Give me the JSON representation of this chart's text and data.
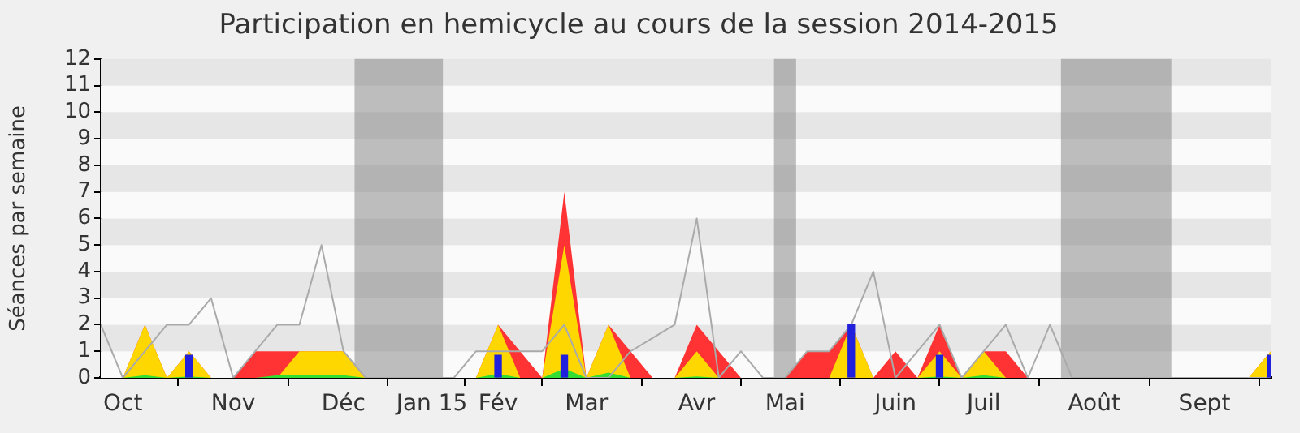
{
  "chart_data": {
    "type": "area",
    "title": "Participation en hemicycle au cours de la session 2014-2015",
    "ylabel": "Séances par semaine",
    "x": [
      "2014-09-29",
      "2014-10-06",
      "2014-10-13",
      "2014-10-20",
      "2014-10-27",
      "2014-11-03",
      "2014-11-10",
      "2014-11-17",
      "2014-11-24",
      "2014-12-01",
      "2014-12-08",
      "2014-12-15",
      "2014-12-22",
      "2014-12-29",
      "2015-01-05",
      "2015-01-12",
      "2015-01-19",
      "2015-01-26",
      "2015-02-02",
      "2015-02-09",
      "2015-02-16",
      "2015-02-23",
      "2015-03-02",
      "2015-03-09",
      "2015-03-16",
      "2015-03-23",
      "2015-03-30",
      "2015-04-06",
      "2015-04-13",
      "2015-04-20",
      "2015-04-27",
      "2015-05-04",
      "2015-05-11",
      "2015-05-18",
      "2015-05-25",
      "2015-06-01",
      "2015-06-08",
      "2015-06-15",
      "2015-06-22",
      "2015-06-29",
      "2015-07-06",
      "2015-07-13",
      "2015-07-20",
      "2015-07-27",
      "2015-08-03",
      "2015-08-10",
      "2015-08-17",
      "2015-08-24",
      "2015-08-31",
      "2015-09-07",
      "2015-09-14",
      "2015-09-21",
      "2015-09-28",
      "2015-10-05"
    ],
    "series": [
      {
        "color": "#ff3333",
        "values": [
          0,
          0,
          2,
          0,
          1,
          0,
          0,
          1,
          1,
          1,
          1,
          1,
          0,
          0,
          0,
          0,
          0,
          0,
          2,
          1,
          0,
          7,
          0,
          2,
          1,
          0,
          0,
          2,
          1,
          0,
          0,
          0,
          1,
          1,
          2,
          0,
          1,
          0,
          2,
          0,
          1,
          1,
          0,
          0,
          0,
          0,
          0,
          0,
          0,
          0,
          0,
          0,
          0,
          1
        ]
      },
      {
        "color": "#ffd700",
        "values": [
          0,
          0,
          2,
          0,
          1,
          0,
          0,
          0,
          0,
          1,
          1,
          1,
          0,
          0,
          0,
          0,
          0,
          0,
          2,
          0,
          0,
          5,
          0,
          2,
          0,
          0,
          0,
          1,
          0,
          0,
          0,
          0,
          0,
          0,
          2,
          0,
          0,
          0,
          1,
          0,
          1,
          0,
          0,
          0,
          0,
          0,
          0,
          0,
          0,
          0,
          0,
          0,
          0,
          1
        ]
      },
      {
        "color": "#33dd33",
        "values": [
          0,
          0,
          0.1,
          0,
          0.05,
          0,
          0,
          0,
          0.1,
          0.1,
          0.1,
          0.1,
          0,
          0,
          0,
          0,
          0,
          0,
          0.15,
          0,
          0,
          0.35,
          0,
          0.2,
          0,
          0,
          0,
          0.05,
          0,
          0,
          0,
          0,
          0,
          0,
          null,
          0,
          0,
          0,
          0.05,
          0,
          0.1,
          0,
          0,
          0,
          0,
          0,
          0,
          0,
          0,
          0,
          0,
          0,
          0,
          0
        ]
      },
      {
        "type": "line",
        "color": "#aaaaaa",
        "values": [
          2,
          0,
          1,
          2,
          2,
          3,
          0,
          1,
          2,
          2,
          5,
          1,
          0,
          0,
          0,
          0,
          0,
          1,
          1,
          1,
          1,
          2,
          0,
          0,
          1,
          1.5,
          2,
          6,
          0,
          1,
          0,
          0,
          1,
          1,
          2,
          4,
          0,
          1,
          2,
          0,
          1,
          2,
          0,
          2,
          0,
          0,
          0,
          0,
          0,
          0,
          0,
          0,
          0,
          0
        ]
      },
      {
        "type": "bar",
        "color": "#2020dd",
        "values": [
          null,
          null,
          null,
          null,
          0.85,
          null,
          null,
          null,
          null,
          null,
          null,
          null,
          null,
          null,
          null,
          null,
          null,
          null,
          0.85,
          null,
          null,
          0.85,
          null,
          null,
          null,
          null,
          null,
          null,
          null,
          null,
          null,
          null,
          null,
          null,
          2,
          null,
          null,
          null,
          0.85,
          null,
          null,
          null,
          null,
          null,
          null,
          null,
          null,
          null,
          null,
          null,
          null,
          null,
          null,
          0.85
        ]
      }
    ],
    "xlim": [
      "2014-09-29",
      "2015-10-05"
    ],
    "xticks": [
      {
        "value": "2014-10-06",
        "label": "Oct"
      },
      {
        "value": "2014-11-10",
        "label": "Nov"
      },
      {
        "value": "2014-12-15",
        "label": "Déc"
      },
      {
        "value": "2015-01-12",
        "label": "Jan 15"
      },
      {
        "value": "2015-02-02",
        "label": "Fév"
      },
      {
        "value": "2015-03-02",
        "label": "Mar"
      },
      {
        "value": "2015-04-06",
        "label": "Avr"
      },
      {
        "value": "2015-05-04",
        "label": "Mai"
      },
      {
        "value": "2015-06-08",
        "label": "Juin"
      },
      {
        "value": "2015-07-06",
        "label": "Juil"
      },
      {
        "value": "2015-08-10",
        "label": "Août"
      },
      {
        "value": "2015-09-14",
        "label": "Sept"
      }
    ],
    "ylim": [
      0,
      12
    ],
    "yticks": [
      0,
      1,
      2,
      3,
      4,
      5,
      6,
      7,
      8,
      9,
      10,
      11,
      12
    ],
    "bands": [
      {
        "axis": "x",
        "from": "2014-12-18T12:00",
        "to": "2015-01-15T12:00",
        "color": "#808080"
      },
      {
        "axis": "x",
        "from": "2015-04-30T12:00",
        "to": "2015-05-07T12:00",
        "color": "#808080"
      },
      {
        "axis": "x",
        "from": "2015-07-30T12:00",
        "to": "2015-09-03T12:00",
        "color": "#808080"
      }
    ],
    "legend": false,
    "marker": "none",
    "line_style": "solid"
  }
}
